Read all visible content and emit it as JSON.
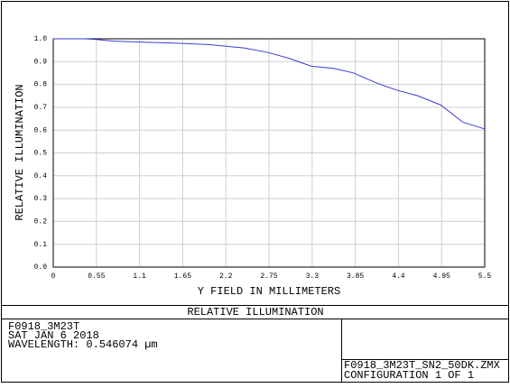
{
  "chart_data": {
    "type": "line",
    "title": "RELATIVE ILLUMINATION",
    "x_label": "Y FIELD IN MILLIMETERS",
    "y_label": "RELATIVE ILLUMINATION",
    "x": [
      0,
      0.41,
      0.55,
      0.76,
      1.16,
      1.62,
      1.97,
      2.43,
      2.74,
      3.0,
      3.29,
      3.58,
      3.83,
      4.13,
      4.38,
      4.65,
      4.94,
      5.22,
      5.5
    ],
    "values": [
      1.0,
      1.0,
      0.997,
      0.99,
      0.985,
      0.98,
      0.975,
      0.96,
      0.94,
      0.915,
      0.88,
      0.87,
      0.85,
      0.805,
      0.775,
      0.75,
      0.71,
      0.635,
      0.605
    ],
    "color": "#3a3ad6",
    "xlim": [
      0,
      5.5
    ],
    "xticks": [
      0,
      0.55,
      1.1,
      1.65,
      2.2,
      2.75,
      3.3,
      3.85,
      4.4,
      4.95,
      5.5
    ],
    "ylim": [
      0,
      1
    ],
    "yticks": [
      {
        "value": 0,
        "label": "0.0"
      },
      0.1,
      0.2,
      0.3,
      0.4,
      0.5,
      0.6,
      0.7,
      0.8,
      0.9,
      {
        "value": 1,
        "label": "1.0"
      }
    ],
    "grid": true
  },
  "footer": {
    "left": [
      "F0918_3M23T",
      "SAT JAN 6 2018",
      "WAVELENGTH: 0.546074 µm"
    ],
    "right": [
      "F0918_3M23T_SN2_50DK.ZMX",
      "CONFIGURATION 1 OF 1"
    ]
  }
}
